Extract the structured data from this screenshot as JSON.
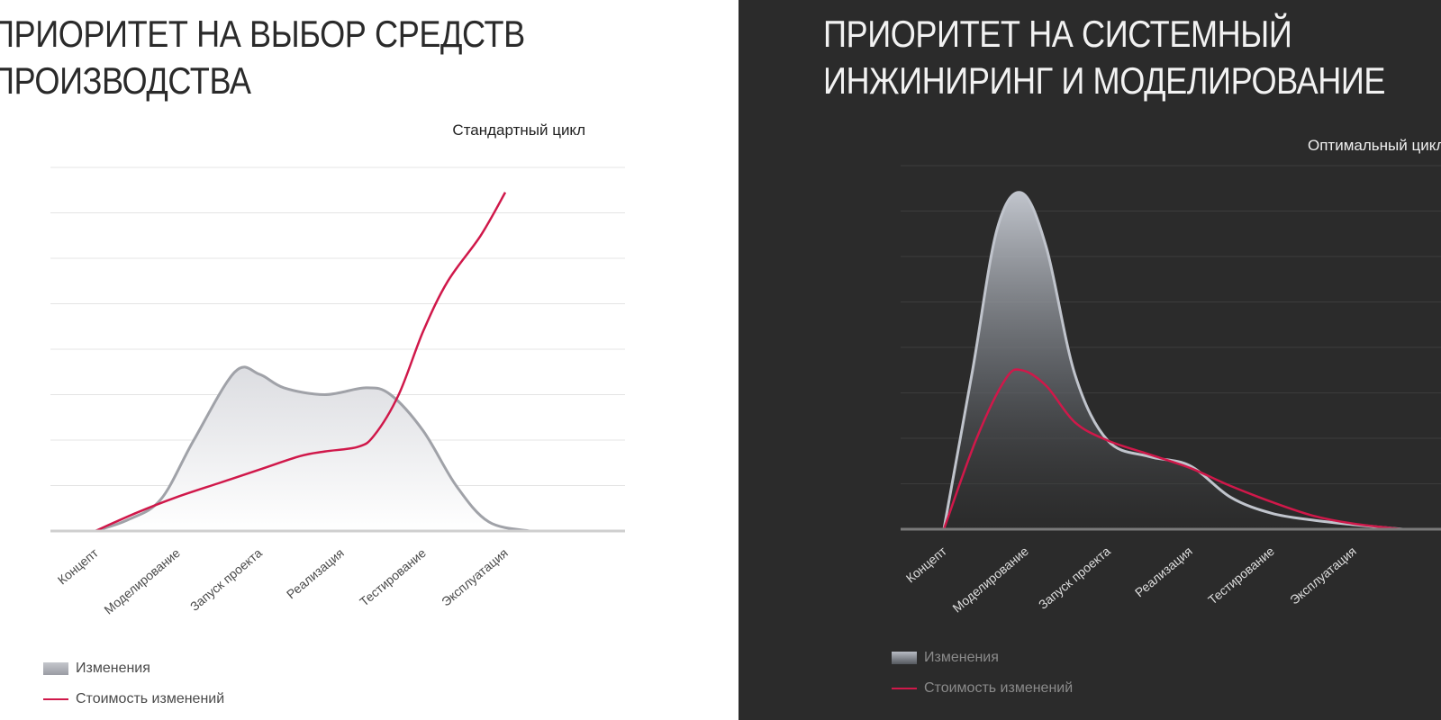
{
  "colors": {
    "accent": "#d0184a",
    "left_bg": "#ffffff",
    "right_bg": "#2b2b2b",
    "changes_left": "#a0a2a8",
    "changes_right": "#c0c4cc"
  },
  "chart_data": [
    {
      "type": "area",
      "title_lines": [
        "ПРИОРИТЕТ НА ВЫБОР СРЕДСТВ",
        "ПРОИЗВОДСТВА"
      ],
      "subtitle": "Стандартный цикл",
      "categories": [
        "Концепт",
        "Моделирование",
        "Запуск проекта",
        "Реализация",
        "Тестирование",
        "Эксплуатация"
      ],
      "ylim": [
        0,
        8
      ],
      "grid": true,
      "series": [
        {
          "name": "Изменения",
          "points": [
            [
              0,
              0
            ],
            [
              0.4,
              0.25
            ],
            [
              0.8,
              0.7
            ],
            [
              1.2,
              2.0
            ],
            [
              1.7,
              3.5
            ],
            [
              2.0,
              3.45
            ],
            [
              2.3,
              3.15
            ],
            [
              2.8,
              3.0
            ],
            [
              3.3,
              3.15
            ],
            [
              3.6,
              3.0
            ],
            [
              4.0,
              2.2
            ],
            [
              4.4,
              1.0
            ],
            [
              4.8,
              0.2
            ],
            [
              5.3,
              0.0
            ]
          ]
        },
        {
          "name": "Стоимость изменений",
          "points": [
            [
              0,
              0
            ],
            [
              0.5,
              0.4
            ],
            [
              1.0,
              0.75
            ],
            [
              1.5,
              1.05
            ],
            [
              2.0,
              1.35
            ],
            [
              2.5,
              1.65
            ],
            [
              2.8,
              1.75
            ],
            [
              3.2,
              1.85
            ],
            [
              3.4,
              2.1
            ],
            [
              3.7,
              3.0
            ],
            [
              4.0,
              4.4
            ],
            [
              4.3,
              5.5
            ],
            [
              4.7,
              6.5
            ],
            [
              5.0,
              7.45
            ]
          ]
        }
      ],
      "legend_position": "bottom-left"
    },
    {
      "type": "area",
      "title_lines": [
        "ПРИОРИТЕТ НА СИСТЕМНЫЙ",
        "ИНЖИНИРИНГ И МОДЕЛИРОВАНИЕ"
      ],
      "subtitle": "Оптимальный цикл",
      "categories": [
        "Концепт",
        "Моделирование",
        "Запуск проекта",
        "Реализация",
        "Тестирование",
        "Эксплуатация"
      ],
      "ylim": [
        0,
        8
      ],
      "grid": true,
      "series": [
        {
          "name": "Изменения",
          "points": [
            [
              0,
              0
            ],
            [
              0.35,
              3.5
            ],
            [
              0.65,
              6.6
            ],
            [
              0.95,
              7.4
            ],
            [
              1.25,
              6.2
            ],
            [
              1.6,
              3.4
            ],
            [
              2.0,
              1.95
            ],
            [
              2.5,
              1.6
            ],
            [
              3.0,
              1.4
            ],
            [
              3.5,
              0.7
            ],
            [
              4.0,
              0.35
            ],
            [
              4.5,
              0.2
            ],
            [
              5.0,
              0.1
            ],
            [
              5.6,
              0.0
            ]
          ]
        },
        {
          "name": "Стоимость изменений",
          "points": [
            [
              0,
              0
            ],
            [
              0.4,
              2.0
            ],
            [
              0.75,
              3.3
            ],
            [
              0.95,
              3.5
            ],
            [
              1.25,
              3.15
            ],
            [
              1.6,
              2.35
            ],
            [
              2.0,
              1.95
            ],
            [
              2.5,
              1.65
            ],
            [
              3.0,
              1.35
            ],
            [
              3.5,
              0.95
            ],
            [
              4.0,
              0.6
            ],
            [
              4.5,
              0.3
            ],
            [
              5.0,
              0.12
            ],
            [
              5.6,
              0.0
            ]
          ]
        }
      ],
      "legend_position": "bottom-left"
    }
  ]
}
